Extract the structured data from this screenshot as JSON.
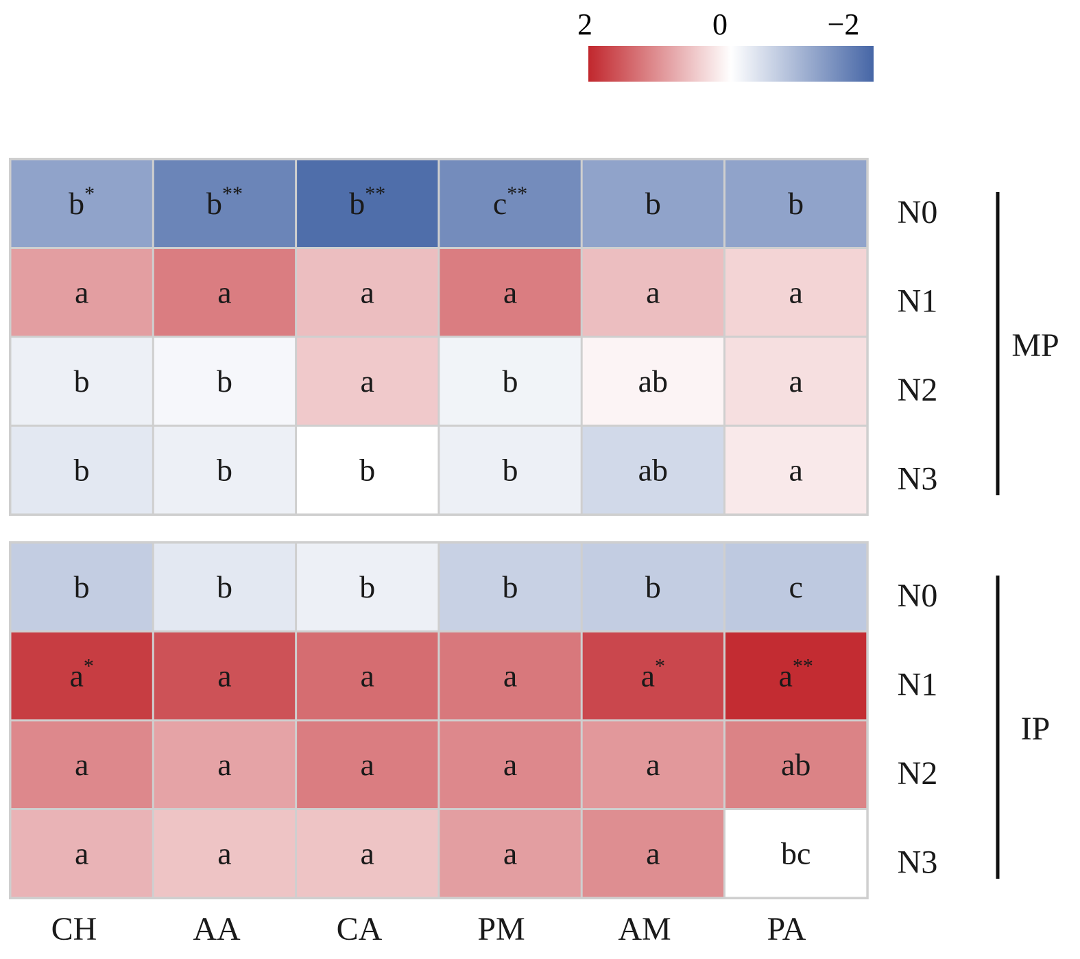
{
  "chart_data": {
    "type": "heatmap",
    "title": "",
    "columns": [
      "CH",
      "AA",
      "CA",
      "PM",
      "AM",
      "PA"
    ],
    "colorbar": {
      "ticks": [
        "2",
        "0",
        "−2"
      ],
      "range": [
        2,
        -2
      ],
      "low_color": "#4666a6",
      "mid_color": "#ffffff",
      "high_color": "#c1272d"
    },
    "panels": [
      {
        "group": "MP",
        "rows": [
          "N0",
          "N1",
          "N2",
          "N3"
        ],
        "values": [
          [
            -1.2,
            -1.6,
            -1.9,
            -1.5,
            -1.2,
            -1.2
          ],
          [
            0.9,
            1.2,
            0.6,
            1.2,
            0.6,
            0.4
          ],
          [
            -0.2,
            -0.1,
            0.5,
            -0.15,
            0.1,
            0.3
          ],
          [
            -0.3,
            -0.2,
            0.0,
            -0.2,
            -0.5,
            0.2
          ]
        ],
        "labels": [
          [
            "b",
            "b",
            "b",
            "c",
            "b",
            "b"
          ],
          [
            "a",
            "a",
            "a",
            "a",
            "a",
            "a"
          ],
          [
            "b",
            "b",
            "a",
            "b",
            "ab",
            "a"
          ],
          [
            "b",
            "b",
            "b",
            "b",
            "ab",
            "a"
          ]
        ],
        "significance": [
          [
            "*",
            "**",
            "**",
            "**",
            "",
            ""
          ],
          [
            "",
            "",
            "",
            "",
            "",
            ""
          ],
          [
            "",
            "",
            "",
            "",
            "",
            ""
          ],
          [
            "",
            "",
            "",
            "",
            "",
            ""
          ]
        ]
      },
      {
        "group": "IP",
        "rows": [
          "N0",
          "N1",
          "N2",
          "N3"
        ],
        "values": [
          [
            -0.65,
            -0.3,
            -0.2,
            -0.6,
            -0.65,
            -0.7
          ],
          [
            1.8,
            1.6,
            1.35,
            1.25,
            1.7,
            1.95
          ],
          [
            1.1,
            0.85,
            1.2,
            1.1,
            0.95,
            1.15
          ],
          [
            0.7,
            0.55,
            0.55,
            0.9,
            1.05,
            0.0
          ]
        ],
        "labels": [
          [
            "b",
            "b",
            "b",
            "b",
            "b",
            "c"
          ],
          [
            "a",
            "a",
            "a",
            "a",
            "a",
            "a"
          ],
          [
            "a",
            "a",
            "a",
            "a",
            "a",
            "ab"
          ],
          [
            "a",
            "a",
            "a",
            "a",
            "a",
            "bc"
          ]
        ],
        "significance": [
          [
            "",
            "",
            "",
            "",
            "",
            ""
          ],
          [
            "*",
            "",
            "",
            "",
            "*",
            "**"
          ],
          [
            "",
            "",
            "",
            "",
            "",
            ""
          ],
          [
            "",
            "",
            "",
            "",
            "",
            ""
          ]
        ]
      }
    ]
  }
}
